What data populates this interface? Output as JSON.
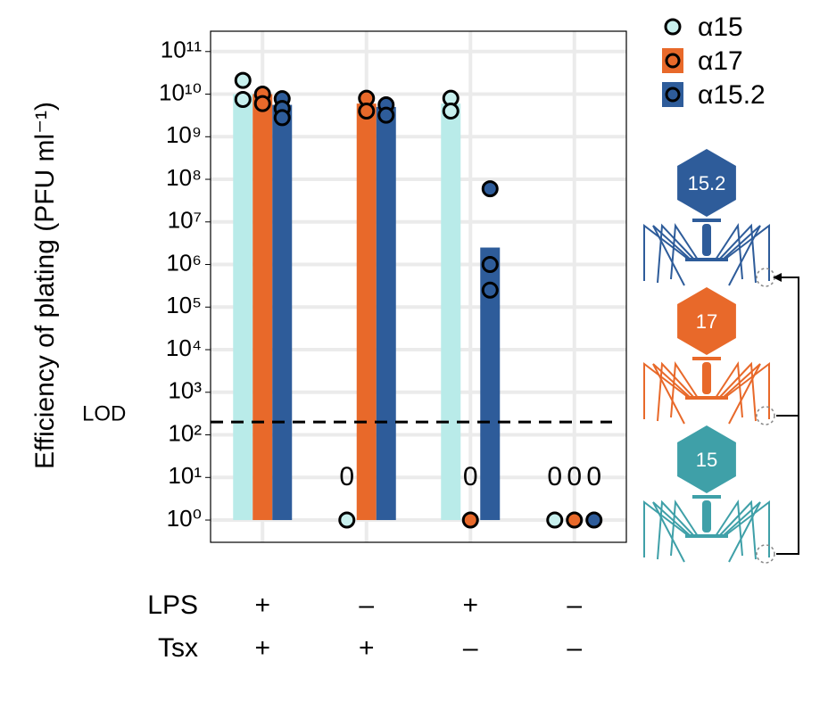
{
  "chart_data": {
    "type": "bar",
    "y_label": "Efficiency of plating (PFU ml⁻¹)",
    "categories": [
      null,
      null,
      null,
      null
    ],
    "conditions": [
      {
        "name": "LPS",
        "values": [
          "+",
          "–",
          "+",
          "–"
        ]
      },
      {
        "name": "Tsx",
        "values": [
          "+",
          "+",
          "–",
          "–"
        ]
      }
    ],
    "log_scale": true,
    "grid": true,
    "ylim": [
      0.3,
      300000000000.0
    ],
    "yticks": [
      {
        "value": 1,
        "label": "10⁰"
      },
      {
        "value": 10,
        "label": "10¹"
      },
      {
        "value": 100,
        "label": "10²"
      },
      {
        "value": 1000,
        "label": "10³"
      },
      {
        "value": 10000,
        "label": "10⁴"
      },
      {
        "value": 100000,
        "label": "10⁵"
      },
      {
        "value": 1000000,
        "label": "10⁶"
      },
      {
        "value": 10000000,
        "label": "10⁷"
      },
      {
        "value": 100000000,
        "label": "10⁸"
      },
      {
        "value": 1000000000,
        "label": "10⁹"
      },
      {
        "value": 10000000000,
        "label": "10¹⁰"
      },
      {
        "value": 100000000000,
        "label": "10¹¹"
      }
    ],
    "lod": {
      "label": "LOD",
      "value": 200
    },
    "series": [
      {
        "name": "α15",
        "color": "#b9ebe9",
        "point_color": "#c8f0ee",
        "values": [
          10000000000.0,
          0,
          6000000000.0,
          0
        ],
        "value_labels": [
          null,
          "0",
          null,
          "0"
        ],
        "replicates": [
          [
            21000000000.0,
            7500000000.0
          ],
          [
            1
          ],
          [
            8000000000.0,
            4000000000.0
          ],
          [
            1
          ]
        ]
      },
      {
        "name": "α17",
        "color": "#e8692a",
        "point_color": "#e8692a",
        "values": [
          10000000000.0,
          6000000000.0,
          0,
          0
        ],
        "value_labels": [
          null,
          null,
          "0",
          "0"
        ],
        "replicates": [
          [
            10000000000.0,
            6000000000.0
          ],
          [
            8000000000.0,
            4000000000.0
          ],
          [
            1
          ],
          [
            1
          ]
        ]
      },
      {
        "name": "α15.2",
        "color": "#2e5c9a",
        "point_color": "#2e5c9a",
        "values": [
          5600000000.0,
          5000000000.0,
          2500000.0,
          0
        ],
        "value_labels": [
          null,
          null,
          null,
          "0"
        ],
        "replicates": [
          [
            7800000000.0,
            4600000000.0,
            2800000000.0
          ],
          [
            5600000000.0,
            3200000000.0
          ],
          [
            60000000.0,
            1000000.0,
            250000.0
          ],
          [
            1
          ]
        ]
      }
    ]
  },
  "diagram": {
    "labels": [
      "15.2",
      "17",
      "15"
    ],
    "colors": [
      "#2e5c9a",
      "#e8692a",
      "#3fa0a8"
    ]
  }
}
